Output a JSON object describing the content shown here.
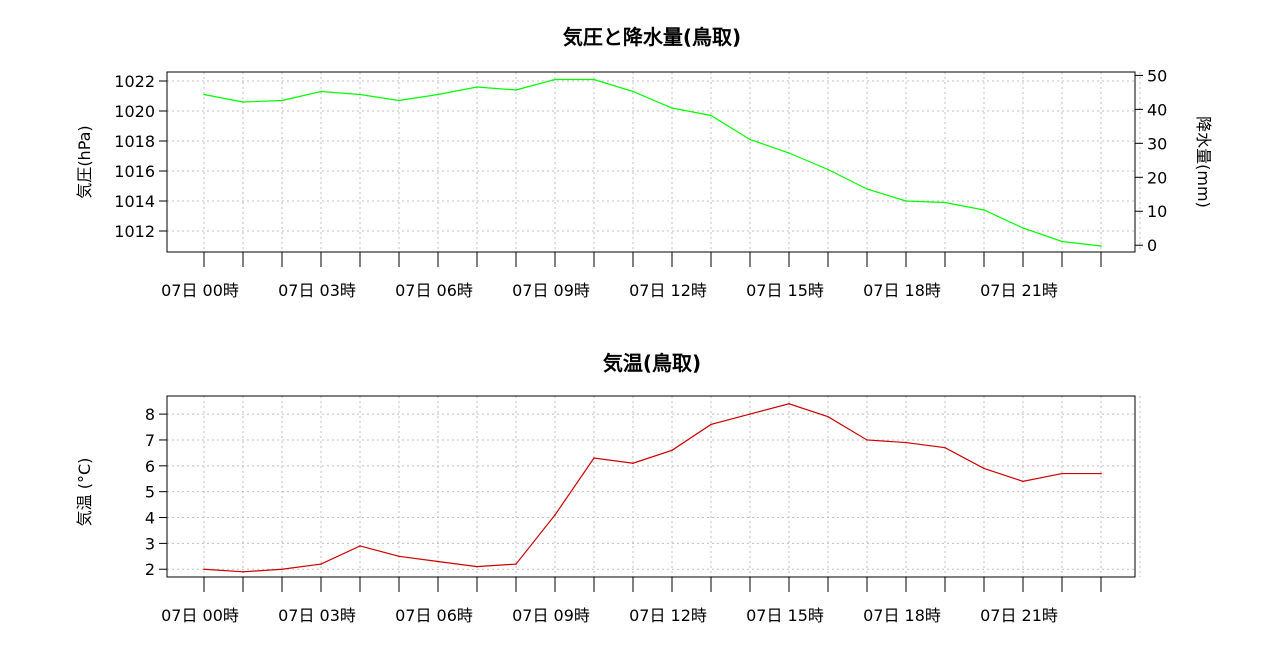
{
  "chart_data": [
    {
      "type": "line",
      "title": "気圧と降水量(鳥取)",
      "ylabel": "気圧(hPa)",
      "y2label": "降水量(mm)",
      "ylim": [
        1010.6,
        1022.6
      ],
      "yticks": [
        1012,
        1014,
        1016,
        1018,
        1020,
        1022
      ],
      "y2lim": [
        -2,
        51
      ],
      "y2ticks": [
        0,
        10,
        20,
        30,
        40,
        50
      ],
      "xticklabels": [
        "07日 00時",
        "07日 03時",
        "07日 06時",
        "07日 09時",
        "07日 12時",
        "07日 15時",
        "07日 18時",
        "07日 21時"
      ],
      "x_hours": [
        0,
        1,
        2,
        3,
        4,
        5,
        6,
        7,
        8,
        9,
        10,
        11,
        12,
        13,
        14,
        15,
        16,
        17,
        18,
        19,
        20,
        21,
        22,
        23
      ],
      "grid": true,
      "series": [
        {
          "color": "#00ff00",
          "values": [
            1021.1,
            1020.6,
            1020.7,
            1021.3,
            1021.1,
            1020.7,
            1021.1,
            1021.6,
            1021.4,
            1022.1,
            1022.1,
            1021.3,
            1020.2,
            1019.7,
            1018.1,
            1017.2,
            1016.1,
            1014.8,
            1014.0,
            1013.9,
            1013.4,
            1012.2,
            1011.3,
            1011.0
          ]
        }
      ],
      "precip_values": [
        0,
        0,
        0,
        0,
        0,
        0,
        0,
        0,
        0,
        0,
        0,
        0,
        0,
        0,
        0,
        0,
        0,
        0,
        0,
        0,
        0,
        0,
        0,
        0
      ]
    },
    {
      "type": "line",
      "title": "気温(鳥取)",
      "ylabel": "気温 (°C)",
      "ylim": [
        1.7,
        8.7
      ],
      "yticks": [
        2,
        3,
        4,
        5,
        6,
        7,
        8
      ],
      "xticklabels": [
        "07日 00時",
        "07日 03時",
        "07日 06時",
        "07日 09時",
        "07日 12時",
        "07日 15時",
        "07日 18時",
        "07日 21時"
      ],
      "x_hours": [
        0,
        1,
        2,
        3,
        4,
        5,
        6,
        7,
        8,
        9,
        10,
        11,
        12,
        13,
        14,
        15,
        16,
        17,
        18,
        19,
        20,
        21,
        22,
        23
      ],
      "grid": true,
      "series": [
        {
          "color": "#cc0000",
          "values": [
            2.0,
            1.9,
            2.0,
            2.2,
            2.9,
            2.5,
            2.3,
            2.1,
            2.2,
            4.1,
            6.3,
            6.1,
            6.6,
            7.6,
            8.0,
            8.4,
            7.9,
            7.0,
            6.9,
            6.7,
            5.9,
            5.4,
            5.7,
            5.7
          ]
        }
      ]
    }
  ]
}
